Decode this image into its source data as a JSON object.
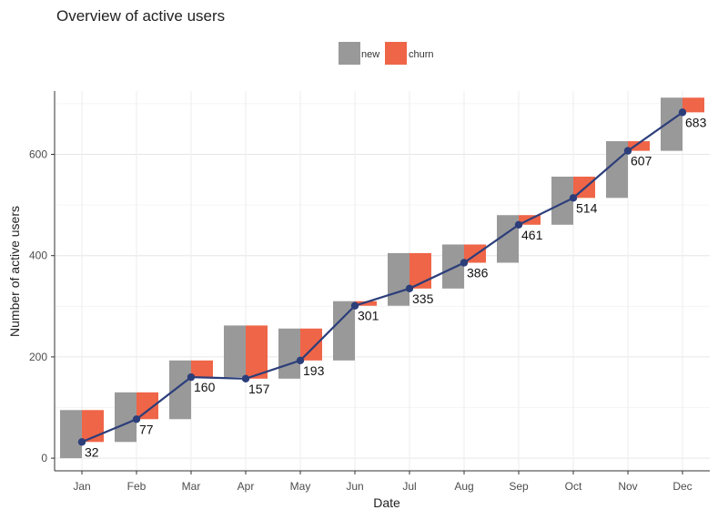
{
  "chart_data": {
    "type": "bar",
    "title": "Overview of active users",
    "xlabel": "Date",
    "ylabel": "Number of active users",
    "categories": [
      "Jan",
      "Feb",
      "Mar",
      "Apr",
      "May",
      "Jun",
      "Jul",
      "Aug",
      "Sep",
      "Oct",
      "Nov",
      "Dec"
    ],
    "ylim": [
      -25,
      725
    ],
    "yticks": [
      0,
      200,
      400,
      600
    ],
    "grid": true,
    "legend_position": "top",
    "series": [
      {
        "name": "new",
        "color": "#999999",
        "ranges": [
          [
            0,
            95
          ],
          [
            32,
            130
          ],
          [
            77,
            193
          ],
          [
            160,
            262
          ],
          [
            157,
            256
          ],
          [
            193,
            310
          ],
          [
            301,
            405
          ],
          [
            335,
            422
          ],
          [
            386,
            480
          ],
          [
            461,
            556
          ],
          [
            514,
            626
          ],
          [
            607,
            712
          ]
        ]
      },
      {
        "name": "churn",
        "color": "#ef6548",
        "ranges": [
          [
            32,
            95
          ],
          [
            77,
            130
          ],
          [
            160,
            193
          ],
          [
            157,
            262
          ],
          [
            193,
            256
          ],
          [
            301,
            310
          ],
          [
            335,
            405
          ],
          [
            386,
            422
          ],
          [
            461,
            480
          ],
          [
            514,
            556
          ],
          [
            607,
            626
          ],
          [
            683,
            712
          ]
        ]
      }
    ],
    "line": {
      "color": "#2c3e7a",
      "values": [
        32,
        77,
        160,
        157,
        193,
        301,
        335,
        386,
        461,
        514,
        607,
        683
      ]
    }
  }
}
